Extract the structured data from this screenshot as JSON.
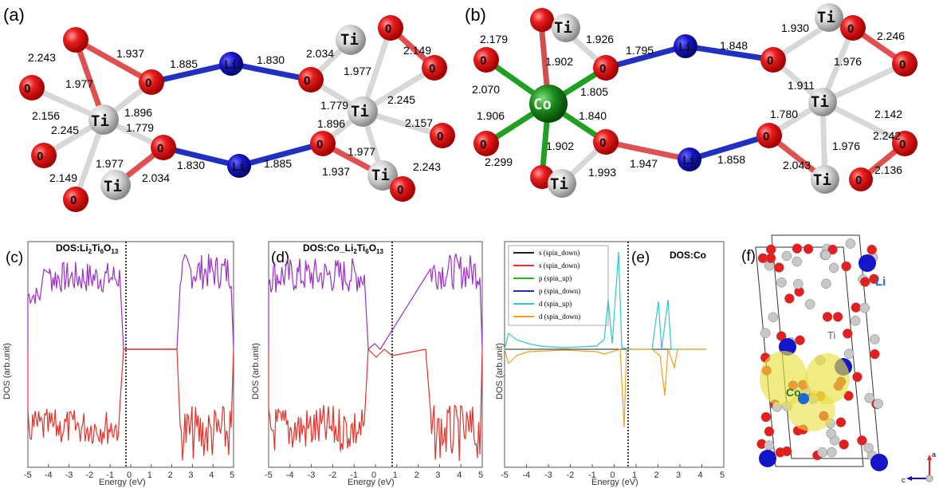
{
  "panels": {
    "a": {
      "label": "(a)"
    },
    "b": {
      "label": "(b)"
    },
    "c": {
      "label": "(c)",
      "title_main": "DOS:Li",
      "title_sub1": "2",
      "title_mid1": "Ti",
      "title_sub2": "6",
      "title_mid2": "O",
      "title_sub3": "13"
    },
    "d": {
      "label": "(d)",
      "title_main": "DOS:Co_Li",
      "title_sub1": "2",
      "title_mid1": "Ti",
      "title_sub2": "6",
      "title_mid2": "O",
      "title_sub3": "13"
    },
    "e": {
      "label": "(e)",
      "title": "DOS:Co"
    },
    "f": {
      "label": "(f)",
      "atom_li": "Li",
      "atom_ti": "Ti",
      "atom_co": "Co",
      "axis_a": "a",
      "axis_c": "c"
    }
  },
  "atoms": {
    "ti": "Ti",
    "li": "Li",
    "o": "O",
    "co": "Co"
  },
  "bonds_a": [
    "2.243",
    "1.937",
    "1.885",
    "1.830",
    "2.034",
    "2.149",
    "1.977",
    "1.977",
    "2.156",
    "1.896",
    "1.779",
    "2.245",
    "2.245",
    "1.779",
    "1.896",
    "2.157",
    "1.977",
    "1.830",
    "1.885",
    "1.977",
    "2.149",
    "2.034",
    "1.937",
    "2.243"
  ],
  "bonds_b": [
    "2.179",
    "1.926",
    "1.795",
    "1.848",
    "1.930",
    "2.246",
    "1.902",
    "1.976",
    "2.070",
    "1.805",
    "1.911",
    "1.906",
    "1.840",
    "2.142",
    "1.780",
    "2.242",
    "1.902",
    "1.976",
    "2.299",
    "1.993",
    "1.947",
    "1.858",
    "2.043",
    "2.136"
  ],
  "axes": {
    "xlabel": "Energy (eV)",
    "ylabel": "DOS (arb.unit)",
    "xticks": [
      "-5",
      "-4",
      "-3",
      "-2",
      "-1",
      "0",
      "1",
      "2",
      "3",
      "4",
      "5"
    ]
  },
  "legend": [
    {
      "label": "s (spin_down)",
      "color": "#222222"
    },
    {
      "label": "s (spin_down)",
      "color": "#e8312a"
    },
    {
      "label": "p (spin_up)",
      "color": "#1bbf1b"
    },
    {
      "label": "p (spin_down)",
      "color": "#1f2fb5"
    },
    {
      "label": "d (spin_up)",
      "color": "#2ec9c9"
    },
    {
      "label": "d (spin_down)",
      "color": "#f0a020"
    }
  ],
  "colors": {
    "oxygen": "#e81e1e",
    "titanium": "#cfcfcf",
    "lithium": "#1414c8",
    "cobalt": "#1a8a1a",
    "dos_up": "#9b30c8",
    "dos_down": "#e8312a",
    "iso": "#e8e040"
  }
}
